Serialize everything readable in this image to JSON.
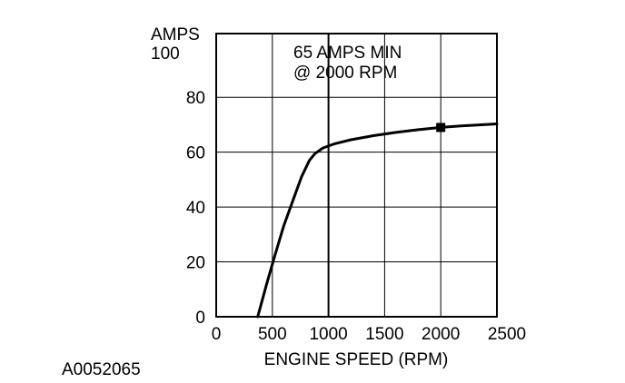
{
  "chart_data": {
    "type": "line",
    "ylabel_line1": "AMPS",
    "ylabel_line2": "100",
    "xlabel": "ENGINE SPEED (RPM)",
    "annotation_line1": "65 AMPS MIN",
    "annotation_line2": "@ 2000 RPM",
    "figure_id": "A0052065",
    "xlim": [
      0,
      2500
    ],
    "ylim": [
      0,
      100
    ],
    "x_ticks": [
      {
        "value": 0,
        "label": "0"
      },
      {
        "value": 500,
        "label": "500"
      },
      {
        "value": 1000,
        "label": "1000"
      },
      {
        "value": 1500,
        "label": "1500"
      },
      {
        "value": 2000,
        "label": "2000"
      },
      {
        "value": 2500,
        "label": "2500"
      }
    ],
    "y_ticks": [
      {
        "value": 0,
        "label": "0"
      },
      {
        "value": 20,
        "label": "20"
      },
      {
        "value": 40,
        "label": "40"
      },
      {
        "value": 60,
        "label": "60"
      },
      {
        "value": 80,
        "label": "80"
      }
    ],
    "grid": true,
    "series": [
      {
        "x": [
          370,
          450,
          520,
          600,
          680,
          760,
          830,
          880,
          950,
          1050,
          1200,
          1400,
          1600,
          1800,
          2000,
          2200,
          2500
        ],
        "y": [
          0,
          12,
          22,
          33,
          42,
          51,
          57,
          59.5,
          61.5,
          63,
          64.5,
          66,
          67.2,
          68.2,
          69,
          69.6,
          70.3
        ]
      }
    ],
    "marker": {
      "x": 2000,
      "y": 69
    }
  }
}
